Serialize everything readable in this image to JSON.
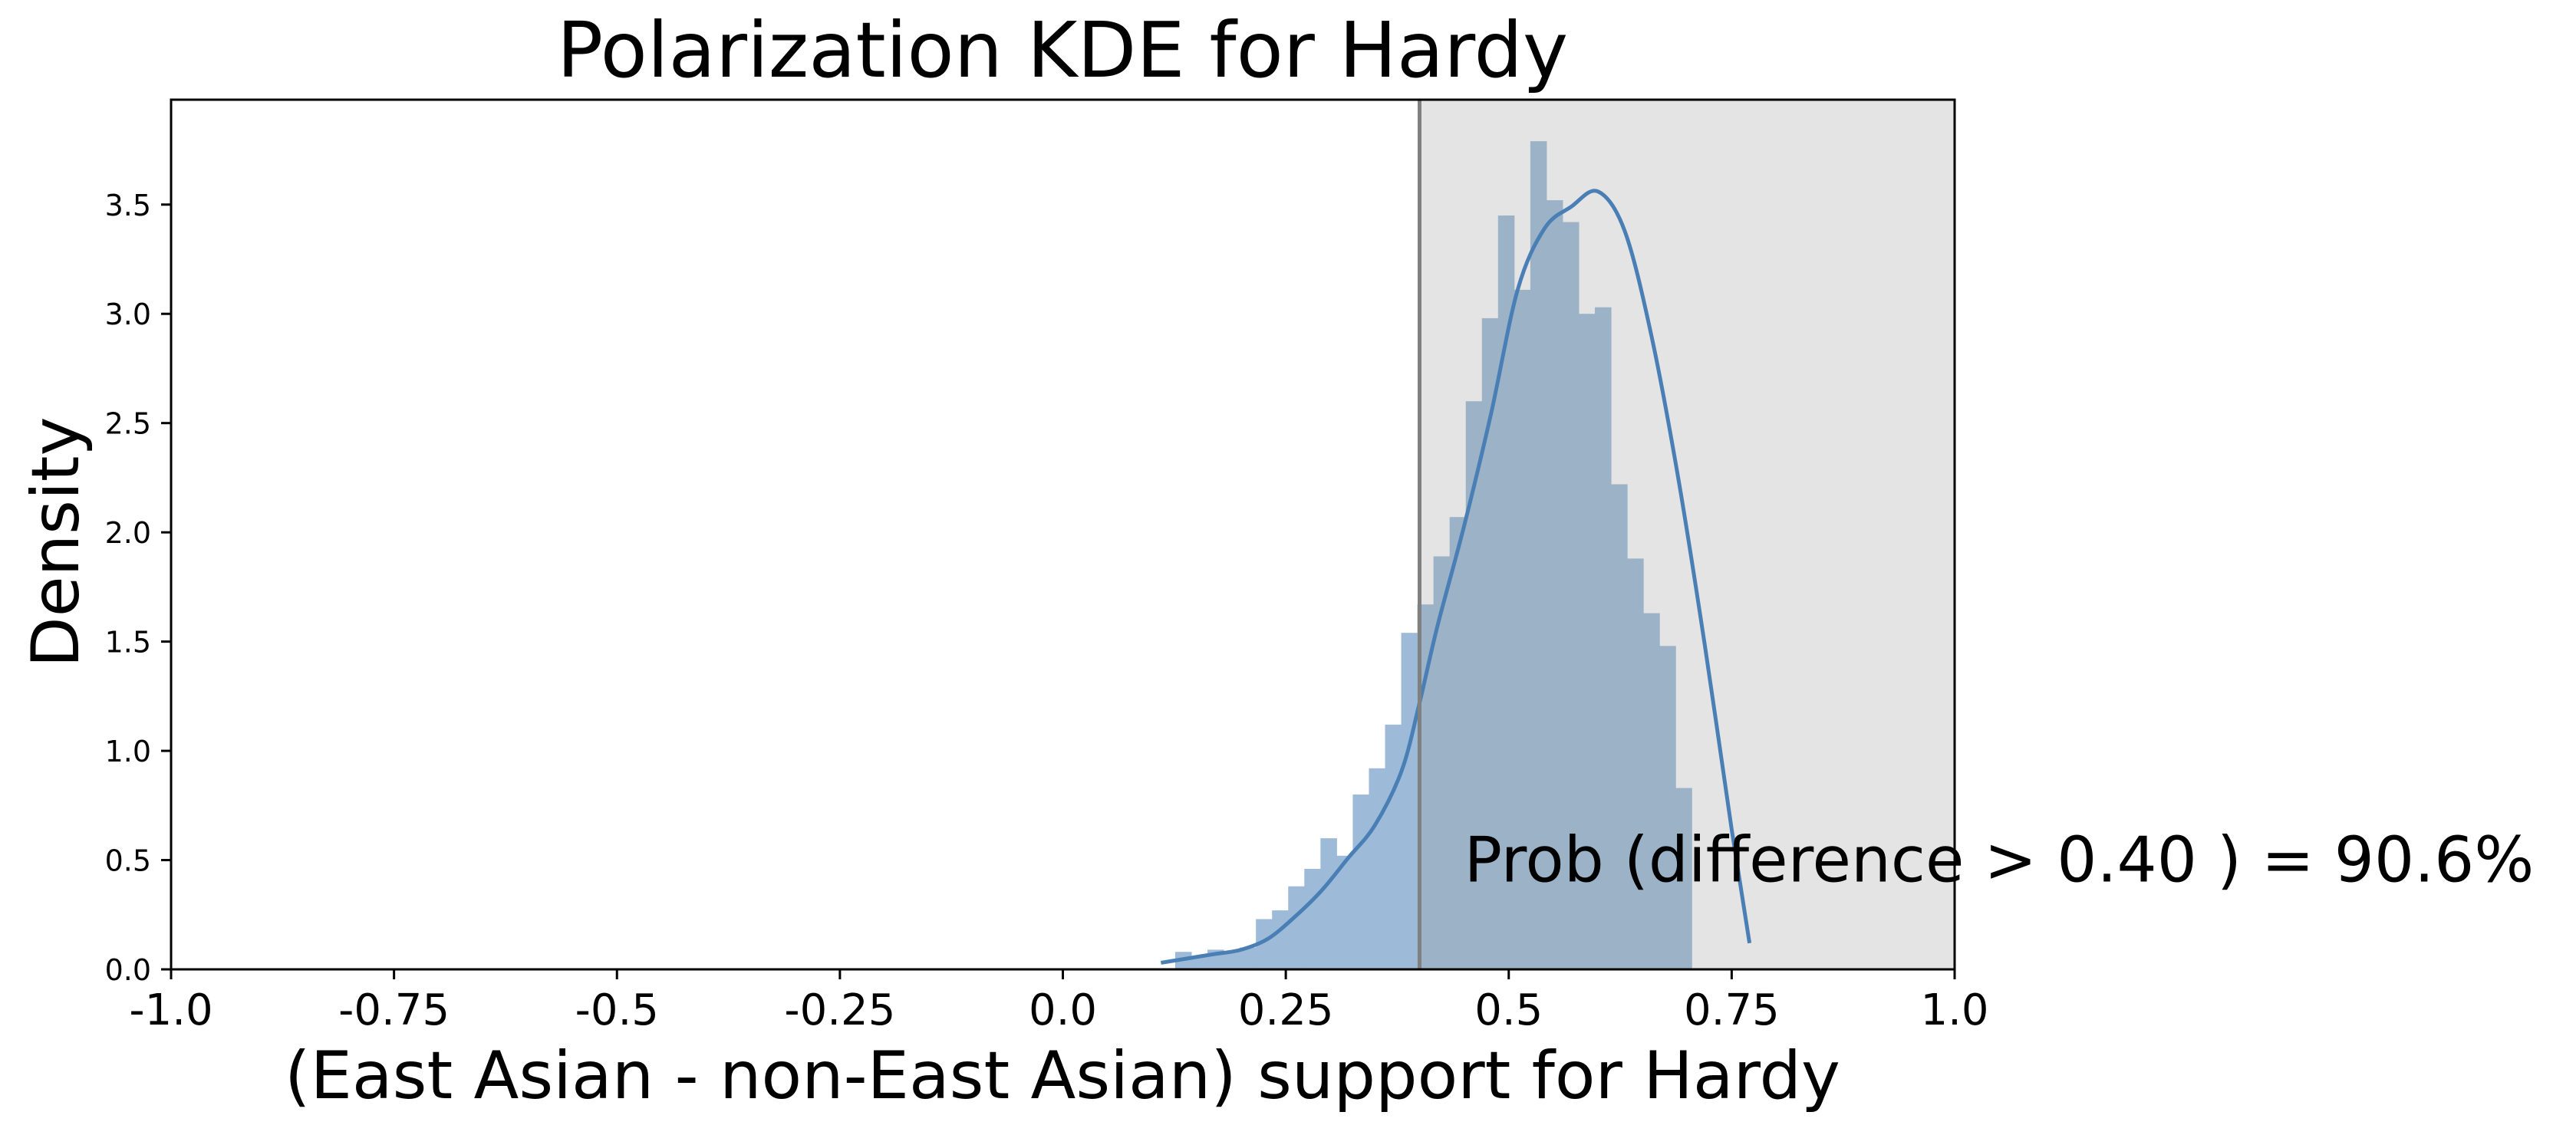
{
  "chart_data": {
    "type": "histogram",
    "title": "Polarization KDE for Hardy",
    "xlabel": "(East Asian - non-East Asian) support for Hardy",
    "ylabel": "Density",
    "xlim": [
      -1.0,
      1.0
    ],
    "ylim": [
      0.0,
      3.98
    ],
    "xticks": [
      -1.0,
      -0.75,
      -0.5,
      -0.25,
      0.0,
      0.25,
      0.5,
      0.75,
      1.0
    ],
    "xtick_labels": [
      "-1.0",
      "-0.75",
      "-0.5",
      "-0.25",
      "0.0",
      "0.25",
      "0.5",
      "0.75",
      "1.0"
    ],
    "yticks": [
      0.0,
      0.5,
      1.0,
      1.5,
      2.0,
      2.5,
      3.0,
      3.5
    ],
    "ytick_labels": [
      "0.0",
      "0.5",
      "1.0",
      "1.5",
      "2.0",
      "2.5",
      "3.0",
      "3.5"
    ],
    "threshold": 0.4,
    "shaded_region": [
      0.4,
      1.0
    ],
    "annotation": "Prob (difference > 0.40 ) = 90.6%",
    "annotation_anchor": [
      0.45,
      0.5
    ],
    "grid": false,
    "colors": {
      "bars": "#9dbbd8",
      "bars_in_region": "#9cb2c7",
      "kde_line": "#4a7fb5",
      "threshold_line": "#808080",
      "shade": "#e4e4e4"
    },
    "histogram": {
      "bin_edges_start": 0.126,
      "bin_width": 0.0181,
      "densities": [
        0.08,
        0.06,
        0.09,
        0.08,
        0.1,
        0.23,
        0.27,
        0.38,
        0.46,
        0.6,
        0.52,
        0.8,
        0.92,
        1.12,
        1.54,
        1.67,
        1.89,
        2.07,
        2.6,
        2.98,
        3.45,
        3.11,
        3.79,
        3.52,
        3.42,
        3.0,
        3.03,
        2.22,
        1.88,
        1.63,
        1.48,
        0.83
      ]
    },
    "kde": {
      "x": [
        0.11,
        0.14,
        0.17,
        0.2,
        0.23,
        0.26,
        0.29,
        0.32,
        0.35,
        0.38,
        0.4,
        0.42,
        0.45,
        0.48,
        0.51,
        0.54,
        0.57,
        0.6,
        0.63,
        0.66,
        0.69,
        0.72,
        0.75,
        0.77
      ],
      "y": [
        0.03,
        0.05,
        0.07,
        0.09,
        0.14,
        0.24,
        0.36,
        0.51,
        0.66,
        0.91,
        1.22,
        1.57,
        2.03,
        2.54,
        3.11,
        3.39,
        3.49,
        3.56,
        3.38,
        2.9,
        2.25,
        1.48,
        0.64,
        0.12
      ]
    }
  }
}
